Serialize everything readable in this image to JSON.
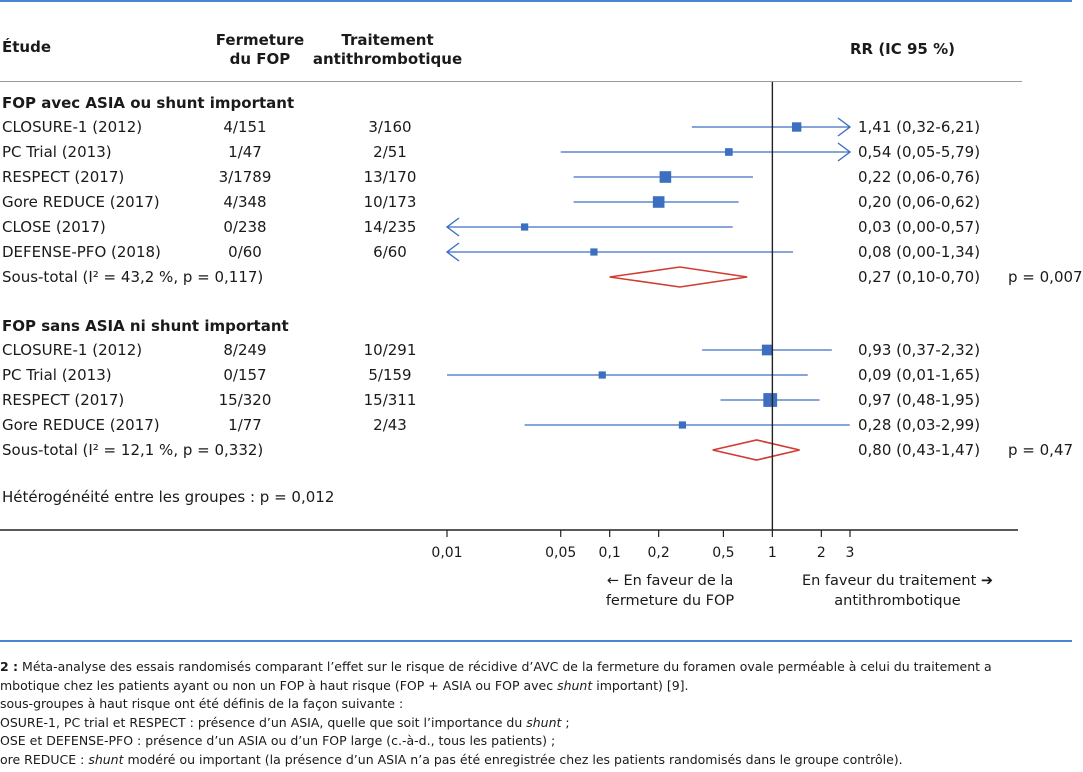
{
  "headers": {
    "study": "Étude",
    "closure": "Fermeture du FOP",
    "antithrombotic": "Traitement antithrombotique",
    "rr": "RR (IC 95 %)"
  },
  "chart_data": {
    "type": "forest",
    "x_scale": "log",
    "ticks": [
      {
        "value": 0.01,
        "label": "0,01"
      },
      {
        "value": 0.05,
        "label": "0,05"
      },
      {
        "value": 0.1,
        "label": "0,1"
      },
      {
        "value": 0.2,
        "label": "0,2"
      },
      {
        "value": 0.5,
        "label": "0,5"
      },
      {
        "value": 1,
        "label": "1"
      },
      {
        "value": 2,
        "label": "2"
      },
      {
        "value": 3,
        "label": "3"
      }
    ],
    "colors": {
      "study": "#3d6fc1",
      "subtotal": "#d23a32",
      "axis": "#222222"
    },
    "groups": [
      {
        "title": "FOP avec ASIA ou shunt important",
        "studies": [
          {
            "name": "CLOSURE-1 (2012)",
            "closure": "4/151",
            "anti": "3/160",
            "rr": 1.41,
            "lo": 0.32,
            "hi": 6.21,
            "rr_text": "1,41 (0,32-6,21)",
            "weight": 2
          },
          {
            "name": "PC Trial (2013)",
            "closure": "1/47",
            "anti": "2/51",
            "rr": 0.54,
            "lo": 0.05,
            "hi": 5.79,
            "rr_text": "0,54 (0,05-5,79)",
            "weight": 1.2
          },
          {
            "name": "RESPECT (2017)",
            "closure": "3/1789",
            "anti": "13/170",
            "rr": 0.22,
            "lo": 0.06,
            "hi": 0.76,
            "rr_text": "0,22 (0,06-0,76)",
            "weight": 3
          },
          {
            "name": "Gore REDUCE (2017)",
            "closure": "4/348",
            "anti": "10/173",
            "rr": 0.2,
            "lo": 0.06,
            "hi": 0.62,
            "rr_text": "0,20 (0,06-0,62)",
            "weight": 3
          },
          {
            "name": "CLOSE (2017)",
            "closure": "0/238",
            "anti": "14/235",
            "rr": 0.03,
            "lo": 0.0,
            "hi": 0.57,
            "rr_text": "0,03 (0,00-0,57)",
            "weight": 1
          },
          {
            "name": "DEFENSE-PFO (2018)",
            "closure": "0/60",
            "anti": "6/60",
            "rr": 0.08,
            "lo": 0.0,
            "hi": 1.34,
            "rr_text": "0,08 (0,00-1,34)",
            "weight": 1
          }
        ],
        "subtotal": {
          "label": "Sous-total (I² = 43,2 %, p = 0,117)",
          "rr": 0.27,
          "lo": 0.1,
          "hi": 0.7,
          "rr_text": "0,27 (0,10-0,70)",
          "p_text": "p = 0,007"
        }
      },
      {
        "title": "FOP sans ASIA ni shunt important",
        "studies": [
          {
            "name": "CLOSURE-1 (2012)",
            "closure": "8/249",
            "anti": "10/291",
            "rr": 0.93,
            "lo": 0.37,
            "hi": 2.32,
            "rr_text": "0,93 (0,37-2,32)",
            "weight": 2.6
          },
          {
            "name": "PC Trial (2013)",
            "closure": "0/157",
            "anti": "5/159",
            "rr": 0.09,
            "lo": 0.01,
            "hi": 1.65,
            "rr_text": "0,09 (0,01-1,65)",
            "weight": 1
          },
          {
            "name": "RESPECT (2017)",
            "closure": "15/320",
            "anti": "15/311",
            "rr": 0.97,
            "lo": 0.48,
            "hi": 1.95,
            "rr_text": "0,97 (0,48-1,95)",
            "weight": 4
          },
          {
            "name": "Gore REDUCE (2017)",
            "closure": "1/77",
            "anti": "2/43",
            "rr": 0.28,
            "lo": 0.03,
            "hi": 2.99,
            "rr_text": "0,28 (0,03-2,99)",
            "weight": 1
          }
        ],
        "subtotal": {
          "label": "Sous-total (I² = 12,1 %, p = 0,332)",
          "rr": 0.8,
          "lo": 0.43,
          "hi": 1.47,
          "rr_text": "0,80 (0,43-1,47)",
          "p_text": "p = 0,47"
        }
      }
    ],
    "heterogeneity": "Hétérogénéité entre les groupes : p = 0,012",
    "favor_left": "← En faveur de la fermeture du FOP",
    "favor_right": "En faveur du traitement ➔ antithrombotique"
  },
  "caption": {
    "line1_bold": "2 :",
    "line1": " Méta-analyse des essais randomisés comparant l’effet sur le risque de récidive d’AVC de la fermeture du foramen ovale perméable à celui du traitement a",
    "line2a": "mbotique chez les patients ayant ou non un FOP à haut risque (FOP + ASIA ou FOP avec ",
    "line2_em": "shunt",
    "line2b": " important) [9].",
    "line3": "sous-groupes à haut risque ont été définis de la façon suivante :",
    "line4a": "OSURE-1, PC trial et RESPECT : présence d’un ASIA, quelle que soit l’importance du ",
    "line4_em": "shunt",
    "line4b": " ;",
    "line5": "OSE et DEFENSE-PFO : présence d’un ASIA ou d’un FOP large (c.-à-d., tous les patients) ;",
    "line6a": "ore REDUCE : ",
    "line6_em": "shunt",
    "line6b": " modéré ou important (la présence d’un ASIA n’a pas été enregistrée chez les patients randomisés dans le groupe contrôle)."
  }
}
